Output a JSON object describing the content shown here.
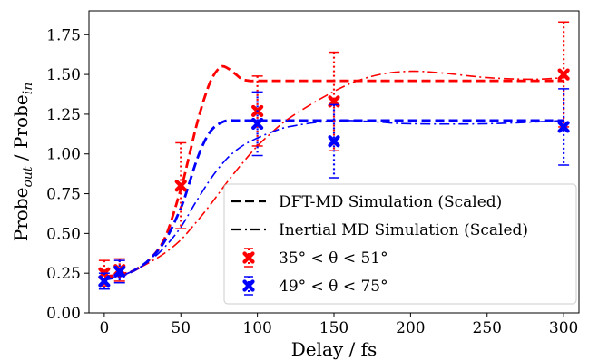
{
  "chart_data": {
    "type": "line",
    "xlabel": "Delay / fs",
    "ylabel": {
      "base": "Probe",
      "sub1": "out",
      "mid": " / Probe",
      "sub2": "in"
    },
    "xlim": [
      -10,
      310
    ],
    "ylim": [
      0.0,
      1.9
    ],
    "x_ticks": [
      0,
      50,
      100,
      150,
      200,
      250,
      300
    ],
    "y_ticks": [
      0.0,
      0.25,
      0.5,
      0.75,
      1.0,
      1.25,
      1.5,
      1.75
    ],
    "y_tick_labels": [
      "0.00",
      "0.25",
      "0.50",
      "0.75",
      "1.00",
      "1.25",
      "1.50",
      "1.75"
    ],
    "colors": {
      "red": "#ff0000",
      "blue": "#0000ff"
    },
    "legend": {
      "position": "lower-right",
      "entries": [
        {
          "key": "dft",
          "label": "DFT-MD Simulation (Scaled)",
          "style": "dashed",
          "color": "#000000"
        },
        {
          "key": "inertial",
          "label": "Inertial MD Simulation (Scaled)",
          "style": "dashdot",
          "color": "#000000"
        },
        {
          "key": "red_points",
          "label": "35° < θ < 51°",
          "style": "marker",
          "color": "#ff0000"
        },
        {
          "key": "blue_points",
          "label": "49° < θ < 75°",
          "style": "marker",
          "color": "#0000ff"
        }
      ]
    },
    "series": [
      {
        "name": "35° < θ < 51°",
        "kind": "points",
        "color": "#ff0000",
        "x": [
          0,
          10,
          50,
          100,
          150,
          300
        ],
        "y": [
          0.25,
          0.27,
          0.8,
          1.27,
          1.33,
          1.5
        ],
        "err": [
          0.08,
          0.07,
          0.27,
          0.22,
          0.31,
          0.33
        ]
      },
      {
        "name": "49° < θ < 75°",
        "kind": "points",
        "color": "#0000ff",
        "x": [
          0,
          10,
          100,
          150,
          300
        ],
        "y": [
          0.2,
          0.26,
          1.19,
          1.08,
          1.17
        ],
        "err": [
          0.05,
          0.07,
          0.2,
          0.23,
          0.24
        ]
      },
      {
        "kind": "line",
        "style": "dashed",
        "color": "#ff0000",
        "x": [
          0,
          10,
          20,
          30,
          40,
          50,
          55,
          60,
          65,
          70,
          75,
          78,
          82,
          86,
          90,
          95,
          100,
          110,
          120,
          150,
          200,
          250,
          300
        ],
        "y": [
          0.23,
          0.24,
          0.27,
          0.34,
          0.48,
          0.78,
          0.97,
          1.17,
          1.34,
          1.47,
          1.54,
          1.55,
          1.53,
          1.5,
          1.47,
          1.46,
          1.46,
          1.46,
          1.46,
          1.46,
          1.46,
          1.46,
          1.46
        ]
      },
      {
        "kind": "line",
        "style": "dashed",
        "color": "#0000ff",
        "x": [
          0,
          10,
          20,
          30,
          40,
          50,
          55,
          60,
          65,
          70,
          75,
          80,
          85,
          90,
          100,
          110,
          120,
          150,
          200,
          250,
          300
        ],
        "y": [
          0.21,
          0.23,
          0.27,
          0.34,
          0.46,
          0.66,
          0.8,
          0.95,
          1.07,
          1.15,
          1.19,
          1.21,
          1.21,
          1.21,
          1.21,
          1.21,
          1.21,
          1.21,
          1.21,
          1.21,
          1.21
        ]
      },
      {
        "kind": "line",
        "style": "dashdot",
        "color": "#ff0000",
        "x": [
          0,
          10,
          20,
          30,
          40,
          50,
          60,
          70,
          80,
          90,
          100,
          110,
          120,
          140,
          160,
          180,
          200,
          220,
          250,
          280,
          300
        ],
        "y": [
          0.22,
          0.23,
          0.27,
          0.32,
          0.38,
          0.46,
          0.57,
          0.69,
          0.82,
          0.94,
          1.05,
          1.14,
          1.22,
          1.34,
          1.44,
          1.5,
          1.52,
          1.51,
          1.48,
          1.47,
          1.48
        ]
      },
      {
        "kind": "line",
        "style": "dashdot",
        "color": "#0000ff",
        "x": [
          0,
          10,
          20,
          30,
          40,
          50,
          60,
          70,
          80,
          90,
          100,
          110,
          120,
          140,
          160,
          180,
          200,
          250,
          300
        ],
        "y": [
          0.21,
          0.23,
          0.27,
          0.33,
          0.42,
          0.54,
          0.7,
          0.85,
          0.97,
          1.05,
          1.1,
          1.14,
          1.17,
          1.2,
          1.21,
          1.2,
          1.19,
          1.19,
          1.21
        ]
      }
    ]
  }
}
